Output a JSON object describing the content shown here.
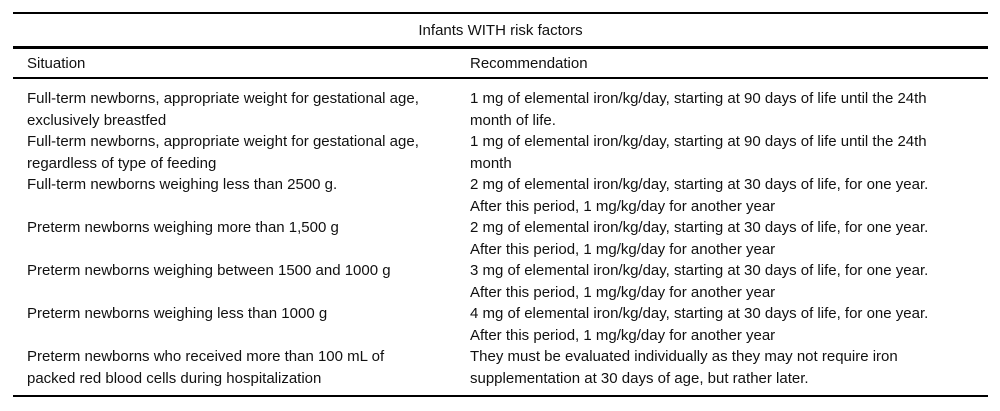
{
  "table": {
    "title": "Infants WITH risk factors",
    "columns": [
      "Situation",
      "Recommendation"
    ],
    "rows": [
      {
        "situation": "Full-term newborns, appropriate weight for gestational age, exclusively breastfed",
        "recommendation": "1 mg of elemental iron/kg/day, starting at 90 days of life until the 24th month of life."
      },
      {
        "situation": "Full-term newborns, appropriate weight for gestational age, regardless of type of feeding",
        "recommendation": "1 mg of elemental iron/kg/day, starting at 90 days of life until the 24th month"
      },
      {
        "situation": "Full-term newborns weighing less than 2500 g.",
        "recommendation": "2 mg of elemental iron/kg/day, starting at 30 days of life, for one year. After this period, 1 mg/kg/day for another year"
      },
      {
        "situation": "Preterm newborns weighing more than 1,500 g",
        "recommendation": "2 mg of elemental iron/kg/day, starting at 30 days of life, for one year. After this period, 1 mg/kg/day for another year"
      },
      {
        "situation": "Preterm newborns weighing between 1500 and 1000 g",
        "recommendation": "3 mg of elemental iron/kg/day, starting at 30 days of life, for one year. After this period, 1 mg/kg/day for another year"
      },
      {
        "situation": "Preterm newborns weighing less than 1000 g",
        "recommendation": "4 mg of elemental iron/kg/day, starting at 30 days of life, for one year. After this period, 1 mg/kg/day for another year"
      },
      {
        "situation": "Preterm newborns who received more than 100 mL of packed red blood cells during hospitalization",
        "recommendation": "They must be evaluated individually as they may not require iron supplementation at 30 days of age, but rather later."
      }
    ]
  }
}
